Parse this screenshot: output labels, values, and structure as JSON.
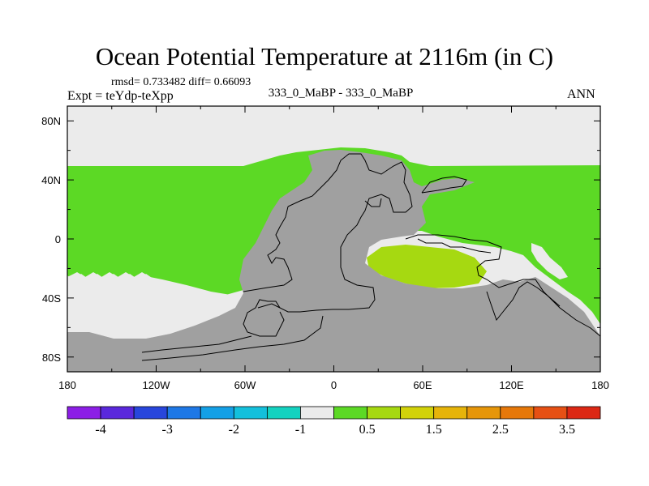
{
  "header": {
    "title": "Ocean Potential Temperature at 2116m (in C)",
    "stats": "rmsd= 0.733482 diff= 0.66093",
    "experiment": "Expt = teYdp-teXpp",
    "comparison": "333_0_MaBP - 333_0_MaBP",
    "season": "ANN"
  },
  "chart_data": {
    "type": "heatmap",
    "title": "Ocean Potential Temperature at 2116m (in C)",
    "subtitle": "333_0_MaBP - 333_0_MaBP",
    "projection": "cylindrical-equidistant",
    "xlim": [
      -180,
      180
    ],
    "ylim": [
      -90,
      90
    ],
    "x_ticks": [
      {
        "value": -180,
        "label": "180"
      },
      {
        "value": -120,
        "label": "120W"
      },
      {
        "value": -60,
        "label": "60W"
      },
      {
        "value": 0,
        "label": "0"
      },
      {
        "value": 60,
        "label": "60E"
      },
      {
        "value": 120,
        "label": "120E"
      },
      {
        "value": 180,
        "label": "180"
      }
    ],
    "y_ticks": [
      {
        "value": 80,
        "label": "80N"
      },
      {
        "value": 40,
        "label": "40N"
      },
      {
        "value": 0,
        "label": "0"
      },
      {
        "value": -40,
        "label": "40S"
      },
      {
        "value": -80,
        "label": "80S"
      }
    ],
    "regions": [
      {
        "name": "near-zero-north",
        "value_range": "-0.5 to 0.5",
        "color": "#ebebeb"
      },
      {
        "name": "warm-band",
        "value_range": "0.5 to 1.0",
        "color": "#5cd925"
      },
      {
        "name": "indian-ocean-patch",
        "value_range": "1.0 to 1.5",
        "color": "#a6d911"
      },
      {
        "name": "land",
        "value_range": "missing",
        "color": "#a0a0a0"
      }
    ],
    "colorbar": {
      "colors": [
        "#8c1ee6",
        "#5a28dc",
        "#2846dc",
        "#1e78e6",
        "#14a0e6",
        "#14c0dc",
        "#14d2c0",
        "#ebebeb",
        "#5cd925",
        "#a6d911",
        "#d2d20a",
        "#e6b40a",
        "#e6960a",
        "#e6780a",
        "#e65014",
        "#dc2814"
      ],
      "labels": [
        {
          "text": "-4",
          "boundary": 1
        },
        {
          "text": "-3",
          "boundary": 3
        },
        {
          "text": "-2",
          "boundary": 5
        },
        {
          "text": "-1",
          "boundary": 7
        },
        {
          "text": "0.5",
          "boundary": 9
        },
        {
          "text": "1.5",
          "boundary": 11
        },
        {
          "text": "2.5",
          "boundary": 13
        },
        {
          "text": "3.5",
          "boundary": 15
        }
      ]
    }
  }
}
